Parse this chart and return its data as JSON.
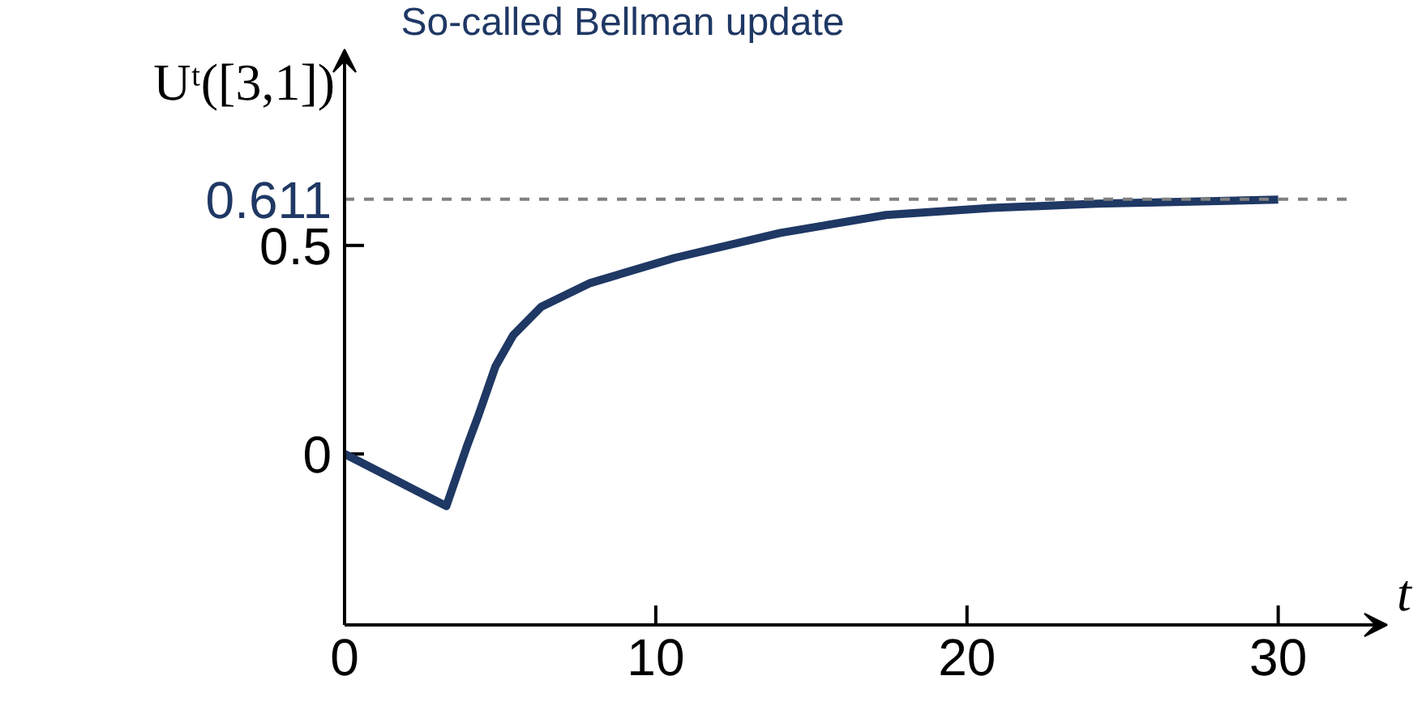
{
  "chart_data": {
    "type": "line",
    "title": "So-called Bellman update",
    "xlabel": "t",
    "ylabel": "Uᵗ([3,1])",
    "x": [
      0,
      3.27,
      3.95,
      4.29,
      4.85,
      5.42,
      6.32,
      7.9,
      10.6,
      14,
      17.4,
      20.8,
      24.2,
      30
    ],
    "series": [
      {
        "color": "#1f3864",
        "values": [
          0,
          -0.125,
          0.022,
          0.09,
          0.21,
          0.285,
          0.353,
          0.41,
          0.47,
          0.53,
          0.573,
          0.59,
          0.6,
          0.61
        ]
      }
    ],
    "xlim": [
      0,
      33.5
    ],
    "ylim": [
      -0.41,
      0.97
    ],
    "xticks": [
      0,
      10,
      20,
      30
    ],
    "yticks": [
      0,
      0.5
    ],
    "ref_lines": [
      {
        "axis": "y",
        "value": 0.611,
        "label": "0.611",
        "color": "#808080",
        "line_style": "dashed"
      }
    ],
    "grid": false,
    "marker": "none",
    "line_style": "solid"
  }
}
